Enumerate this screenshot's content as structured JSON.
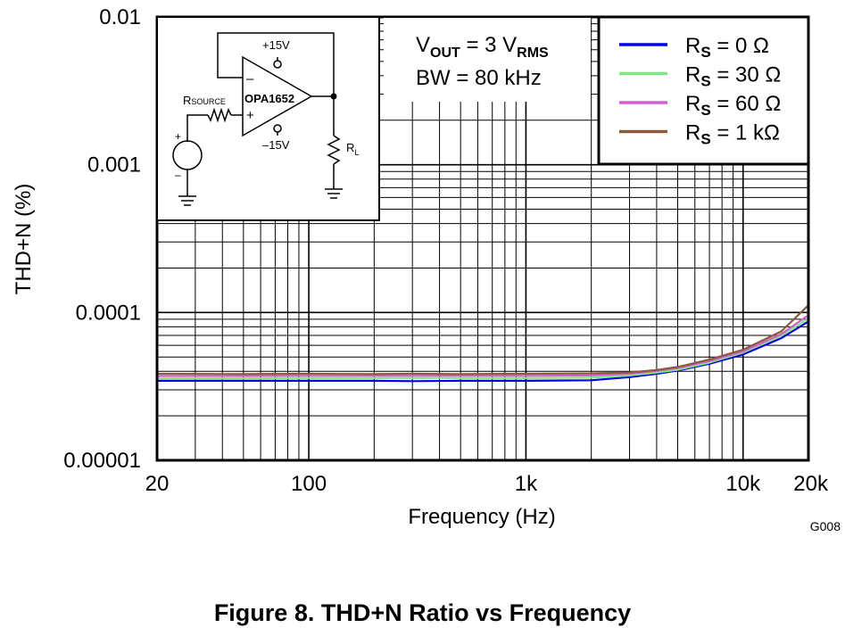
{
  "chart_data": {
    "type": "line",
    "title": "",
    "xlabel": "Frequency (Hz)",
    "ylabel": "THD+N (%)",
    "xscale": "log",
    "yscale": "log",
    "xlim": [
      20,
      20000
    ],
    "ylim": [
      1e-05,
      0.01
    ],
    "x_ticks": [
      {
        "value": 20,
        "label": "20"
      },
      {
        "value": 100,
        "label": "100"
      },
      {
        "value": 1000,
        "label": "1k"
      },
      {
        "value": 10000,
        "label": "10k"
      },
      {
        "value": 20000,
        "label": "20k"
      }
    ],
    "y_ticks": [
      {
        "value": 0.01,
        "label": "0.01"
      },
      {
        "value": 0.001,
        "label": "0.001"
      },
      {
        "value": 0.0001,
        "label": "0.0001"
      },
      {
        "value": 1e-05,
        "label": "0.00001"
      }
    ],
    "grid": true,
    "legend_position": "top-right",
    "x": [
      20,
      50,
      100,
      200,
      300,
      500,
      1000,
      2000,
      3000,
      4000,
      5000,
      7000,
      10000,
      15000,
      20000
    ],
    "series": [
      {
        "name": "RS = 0 Ω",
        "name_main": "R",
        "name_sub": "S",
        "name_rest": " = 0 Ω",
        "color": "#0000ee",
        "values": [
          3.45e-05,
          3.45e-05,
          3.45e-05,
          3.45e-05,
          3.43e-05,
          3.45e-05,
          3.45e-05,
          3.48e-05,
          3.65e-05,
          3.85e-05,
          4.05e-05,
          4.5e-05,
          5.2e-05,
          6.7e-05,
          8.7e-05
        ]
      },
      {
        "name": "RS = 30 Ω",
        "name_main": "R",
        "name_sub": "S",
        "name_rest": " = 30 Ω",
        "color": "#7fe87f",
        "values": [
          3.58e-05,
          3.58e-05,
          3.6e-05,
          3.6e-05,
          3.6e-05,
          3.6e-05,
          3.6e-05,
          3.62e-05,
          3.75e-05,
          3.92e-05,
          4.1e-05,
          4.58e-05,
          5.35e-05,
          6.95e-05,
          9.1e-05
        ]
      },
      {
        "name": "RS = 60 Ω",
        "name_main": "R",
        "name_sub": "S",
        "name_rest": " = 60 Ω",
        "color": "#d060d0",
        "values": [
          3.72e-05,
          3.72e-05,
          3.73e-05,
          3.73e-05,
          3.73e-05,
          3.73e-05,
          3.73e-05,
          3.75e-05,
          3.85e-05,
          4.02e-05,
          4.2e-05,
          4.7e-05,
          5.45e-05,
          7.15e-05,
          9.6e-05
        ]
      },
      {
        "name": "RS = 1 kΩ",
        "name_main": "R",
        "name_sub": "S",
        "name_rest": " = 1 kΩ",
        "color": "#8b5a3c",
        "values": [
          3.85e-05,
          3.83e-05,
          3.85e-05,
          3.83e-05,
          3.85e-05,
          3.83e-05,
          3.85e-05,
          3.87e-05,
          3.93e-05,
          4.08e-05,
          4.28e-05,
          4.8e-05,
          5.6e-05,
          7.45e-05,
          0.000112
        ]
      }
    ],
    "annotation_lines": [
      {
        "main": "V",
        "sub": "OUT",
        "mid": " = 3 V",
        "sub2": "RMS"
      },
      {
        "main": "BW = 80 kHz"
      }
    ],
    "figure_code": "G008",
    "schematic": {
      "supply_pos": "+15V",
      "supply_neg": "–15V",
      "source_label_main": "R",
      "source_label_sub": "SOURCE",
      "opamp_label": "OPA1652",
      "load_label_main": "R",
      "load_label_sub": "L",
      "minus_sign": "–",
      "plus_sign": "+"
    }
  },
  "caption": "Figure 8. THD+N Ratio vs Frequency"
}
